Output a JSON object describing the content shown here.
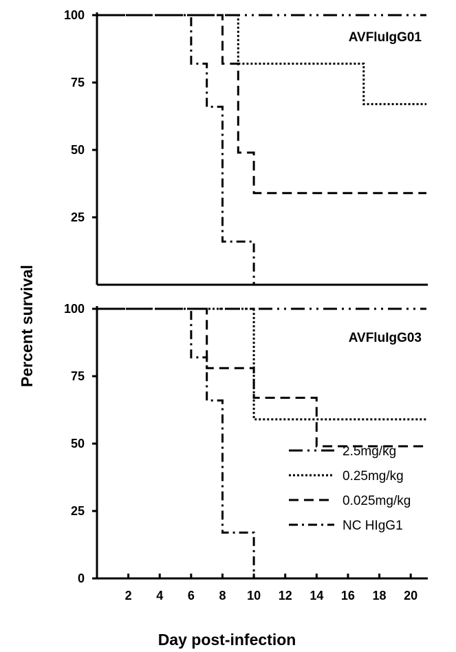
{
  "xlabel": "Day post-infection",
  "ylabel": "Percent survival",
  "legend": [
    {
      "label": "2.5mg/kg",
      "dash": "20 7 3 7 3 7"
    },
    {
      "label": "0.25mg/kg",
      "dash": "3 3"
    },
    {
      "label": "0.025mg/kg",
      "dash": "14 8"
    },
    {
      "label": "NC HIgG1",
      "dash": "13 6 3 6"
    }
  ],
  "chart_data": [
    {
      "type": "line",
      "step": true,
      "title": "AVFluIgG01",
      "xlabel": "",
      "ylabel": "Percent survival",
      "xlim": [
        0,
        21
      ],
      "ylim": [
        0,
        100
      ],
      "yticks": [
        25,
        50,
        75,
        100
      ],
      "series": [
        {
          "name": "2.5mg/kg",
          "x": [
            0,
            21
          ],
          "y": [
            100,
            100
          ]
        },
        {
          "name": "0.25mg/kg",
          "x": [
            0,
            9,
            9,
            17,
            17,
            21
          ],
          "y": [
            100,
            100,
            82,
            82,
            67,
            67
          ]
        },
        {
          "name": "0.025mg/kg",
          "x": [
            0,
            8,
            8,
            9,
            9,
            10,
            10,
            21
          ],
          "y": [
            100,
            100,
            82,
            82,
            49,
            49,
            34,
            34
          ]
        },
        {
          "name": "NC HIgG1",
          "x": [
            0,
            6,
            6,
            7,
            7,
            8,
            8,
            10,
            10,
            21
          ],
          "y": [
            100,
            100,
            82,
            82,
            66,
            66,
            16,
            16,
            0,
            0
          ]
        }
      ]
    },
    {
      "type": "line",
      "step": true,
      "title": "AVFluIgG03",
      "xlabel": "Day post-infection",
      "ylabel": "Percent survival",
      "xlim": [
        0,
        21
      ],
      "ylim": [
        0,
        100
      ],
      "yticks": [
        0,
        25,
        50,
        75,
        100
      ],
      "xticks": [
        2,
        4,
        6,
        8,
        10,
        12,
        14,
        16,
        18,
        20
      ],
      "series": [
        {
          "name": "2.5mg/kg",
          "x": [
            0,
            21
          ],
          "y": [
            100,
            100
          ]
        },
        {
          "name": "0.25mg/kg",
          "x": [
            0,
            10,
            10,
            21
          ],
          "y": [
            100,
            100,
            59,
            59
          ]
        },
        {
          "name": "0.025mg/kg",
          "x": [
            0,
            7,
            7,
            10,
            10,
            14,
            14,
            21
          ],
          "y": [
            100,
            100,
            78,
            78,
            67,
            67,
            49,
            49
          ]
        },
        {
          "name": "NC HIgG1",
          "x": [
            0,
            6,
            6,
            7,
            7,
            8,
            8,
            10,
            10,
            21
          ],
          "y": [
            100,
            100,
            82,
            82,
            66,
            66,
            17,
            17,
            0,
            0
          ]
        }
      ]
    }
  ]
}
